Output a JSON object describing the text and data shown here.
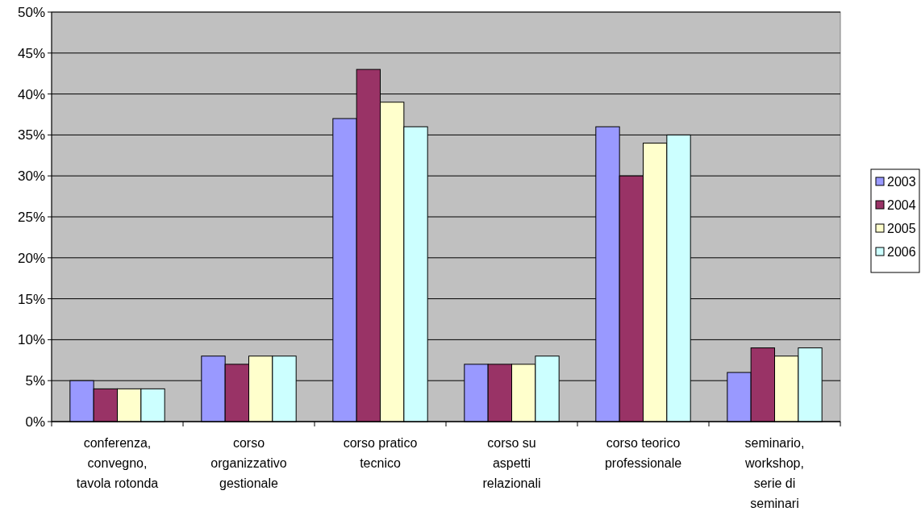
{
  "chart_data": {
    "type": "bar",
    "categories": [
      "conferenza, convegno, tavola rotonda",
      "corso organizzativo gestionale",
      "corso pratico tecnico",
      "corso su aspetti relazionali",
      "corso teorico professionale",
      "seminario, workshop, serie di seminari"
    ],
    "series": [
      {
        "name": "2003",
        "color": "#9999ff",
        "values": [
          5,
          8,
          37,
          7,
          36,
          6
        ]
      },
      {
        "name": "2004",
        "color": "#993366",
        "values": [
          4,
          7,
          43,
          7,
          30,
          9
        ]
      },
      {
        "name": "2005",
        "color": "#ffffcc",
        "values": [
          4,
          8,
          39,
          7,
          34,
          8
        ]
      },
      {
        "name": "2006",
        "color": "#ccffff",
        "values": [
          4,
          8,
          36,
          8,
          35,
          9
        ]
      }
    ],
    "ylim": [
      0,
      50
    ],
    "yticks": [
      {
        "value": 0,
        "label": "0%"
      },
      {
        "value": 5,
        "label": "5%"
      },
      {
        "value": 10,
        "label": "10%"
      },
      {
        "value": 15,
        "label": "15%"
      },
      {
        "value": 20,
        "label": "20%"
      },
      {
        "value": 25,
        "label": "25%"
      },
      {
        "value": 30,
        "label": "30%"
      },
      {
        "value": 35,
        "label": "35%"
      },
      {
        "value": 40,
        "label": "40%"
      },
      {
        "value": 45,
        "label": "45%"
      },
      {
        "value": 50,
        "label": "50%"
      }
    ],
    "grid": "y",
    "legend": "right"
  }
}
